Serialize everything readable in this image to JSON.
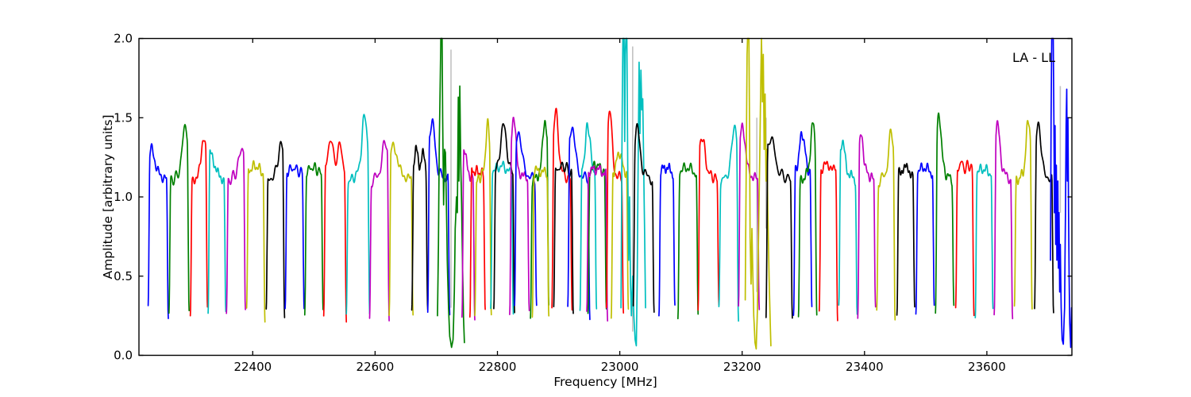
{
  "chart_data": {
    "type": "line",
    "corner_label": "LA - LL",
    "xlabel": "Frequency [MHz]",
    "ylabel": "Amplitude [arbitrary units]",
    "xlim": [
      22214,
      23739
    ],
    "ylim": [
      0,
      2.0
    ],
    "grid": false,
    "legend_position": "upper-right-inside-text-only",
    "xticks": [
      {
        "v": 22400,
        "label": "22400"
      },
      {
        "v": 22600,
        "label": "22600"
      },
      {
        "v": 22800,
        "label": "22800"
      },
      {
        "v": 23000,
        "label": "23000"
      },
      {
        "v": 23200,
        "label": "23200"
      },
      {
        "v": 23400,
        "label": "23400"
      },
      {
        "v": 23600,
        "label": "23600"
      }
    ],
    "yticks": [
      {
        "v": 0.0,
        "label": "0.0"
      },
      {
        "v": 0.5,
        "label": "0.5"
      },
      {
        "v": 1.0,
        "label": "1.0"
      },
      {
        "v": 1.5,
        "label": "1.5"
      },
      {
        "v": 2.0,
        "label": "2.0"
      }
    ],
    "colors": {
      "b": "#0000ff",
      "g": "#008000",
      "r": "#ff0000",
      "c": "#00bfbf",
      "m": "#bf00bf",
      "y": "#bfbf00",
      "k": "#000000",
      "flag": "#c2c2c2",
      "axis": "#000000",
      "background": "#ffffff"
    },
    "plateau_amplitude": 1.15,
    "edge_floor_amplitude": 0.27,
    "bands": [
      {
        "f0": 22229,
        "f1": 22262,
        "c": "b",
        "s": "peakLeft",
        "p": 1.27
      },
      {
        "f0": 22263,
        "f1": 22296,
        "c": "g",
        "s": "ramp",
        "p": 1.42
      },
      {
        "f0": 22298,
        "f1": 22326,
        "c": "r",
        "s": "ramp",
        "p": 1.35
      },
      {
        "f0": 22327,
        "f1": 22356,
        "c": "c",
        "s": "peakLeft",
        "p": 1.25
      },
      {
        "f0": 22357,
        "f1": 22388,
        "c": "m",
        "s": "ramp",
        "p": 1.27
      },
      {
        "f0": 22390,
        "f1": 22420,
        "c": "y",
        "s": "flat",
        "p": 1.24
      },
      {
        "f0": 22422,
        "f1": 22452,
        "c": "k",
        "s": "ramp",
        "p": 1.3
      },
      {
        "f0": 22453,
        "f1": 22484,
        "c": "b",
        "s": "flat",
        "p": 1.21
      },
      {
        "f0": 22485,
        "f1": 22515,
        "c": "g",
        "s": "flat",
        "p": 1.22
      },
      {
        "f0": 22516,
        "f1": 22553,
        "c": "r",
        "s": "double",
        "p": 1.37
      },
      {
        "f0": 22553,
        "f1": 22591,
        "c": "c",
        "s": "ramp",
        "p": 1.47
      },
      {
        "f0": 22591,
        "f1": 22623,
        "c": "m",
        "s": "ramp",
        "p": 1.32
      },
      {
        "f0": 22623,
        "f1": 22662,
        "c": "y",
        "s": "peakLeft",
        "p": 1.3
      },
      {
        "f0": 22660,
        "f1": 22686,
        "c": "k",
        "s": "double",
        "p": 1.3
      },
      {
        "f0": 22686,
        "f1": 22722,
        "c": "b",
        "s": "peakLeft",
        "p": 1.45
      },
      {
        "f0": 22702,
        "f1": 22746,
        "c": "g",
        "s": "anom",
        "p": 2.0,
        "cp": [
          [
            22702,
            0.25
          ],
          [
            22703.5,
            0.7
          ],
          [
            22705,
            1.35
          ],
          [
            22706.5,
            1.75
          ],
          [
            22707.5,
            2.1
          ],
          [
            22709.5,
            2.1
          ],
          [
            22710.5,
            1.5
          ],
          [
            22712,
            0.95
          ],
          [
            22713.5,
            1.3
          ],
          [
            22715,
            1.28
          ],
          [
            22716.5,
            0.95
          ],
          [
            22718,
            0.6
          ],
          [
            22720,
            0.3
          ],
          [
            22722,
            0.12
          ],
          [
            22725,
            0.05
          ],
          [
            22727.5,
            0.1
          ],
          [
            22729.5,
            0.4
          ],
          [
            22731,
            0.8
          ],
          [
            22733,
            1.0
          ],
          [
            22734.5,
            0.9
          ],
          [
            22736,
            1.63
          ],
          [
            22737,
            1.1
          ],
          [
            22738.5,
            1.7
          ],
          [
            22740,
            1.2
          ],
          [
            22741.5,
            0.95
          ],
          [
            22743,
            0.55
          ],
          [
            22744.5,
            0.25
          ],
          [
            22746,
            0.08
          ]
        ]
      },
      {
        "f0": 22742,
        "f1": 22763,
        "c": "m",
        "s": "peakLeft",
        "p": 1.28
      },
      {
        "f0": 22755,
        "f1": 22780,
        "c": "r",
        "s": "flat",
        "p": 1.17
      },
      {
        "f0": 22763,
        "f1": 22790,
        "c": "y",
        "s": "ramp",
        "p": 1.42
      },
      {
        "f0": 22789,
        "f1": 22826,
        "c": "c",
        "s": "flat",
        "p": 1.24
      },
      {
        "f0": 22794,
        "f1": 22828,
        "c": "k",
        "s": "peakMid",
        "p": 1.45
      },
      {
        "f0": 22820,
        "f1": 22852,
        "c": "m",
        "s": "peakLeft",
        "p": 1.45
      },
      {
        "f0": 22828,
        "f1": 22864,
        "c": "b",
        "s": "peakLeft",
        "p": 1.38
      },
      {
        "f0": 22854,
        "f1": 22884,
        "c": "g",
        "s": "ramp",
        "p": 1.45
      },
      {
        "f0": 22857,
        "f1": 22884,
        "c": "y",
        "s": "flat",
        "p": 1.18
      },
      {
        "f0": 22889,
        "f1": 22922,
        "c": "r",
        "s": "peakLeft",
        "p": 1.5
      },
      {
        "f0": 22892,
        "f1": 22924,
        "c": "k",
        "s": "flat",
        "p": 1.24
      },
      {
        "f0": 22915,
        "f1": 22951,
        "c": "b",
        "s": "peakLeft",
        "p": 1.42
      },
      {
        "f0": 22935,
        "f1": 22962,
        "c": "c",
        "s": "peakMid",
        "p": 1.45
      },
      {
        "f0": 22948,
        "f1": 22978,
        "c": "g",
        "s": "flat",
        "p": 1.25
      },
      {
        "f0": 22946,
        "f1": 22980,
        "c": "m",
        "s": "flat",
        "p": 1.2
      },
      {
        "f0": 22978,
        "f1": 23006,
        "c": "r",
        "s": "peakLeft",
        "p": 1.52
      },
      {
        "f0": 22986,
        "f1": 23014,
        "c": "y",
        "s": "peakMid",
        "p": 1.28
      },
      {
        "f0": 23002,
        "f1": 23042,
        "c": "c",
        "s": "anom",
        "p": 2.0,
        "cp": [
          [
            23002,
            0.3
          ],
          [
            23003.5,
            1.3
          ],
          [
            23005,
            2.1
          ],
          [
            23007,
            2.1
          ],
          [
            23008,
            1.35
          ],
          [
            23009,
            1.9
          ],
          [
            23010,
            2.1
          ],
          [
            23011.5,
            2.1
          ],
          [
            23013,
            1.2
          ],
          [
            23014.5,
            0.6
          ],
          [
            23016,
            1.0
          ],
          [
            23017.5,
            0.45
          ],
          [
            23019,
            0.25
          ],
          [
            23021,
            0.5
          ],
          [
            23023,
            0.25
          ],
          [
            23025,
            0.1
          ],
          [
            23027,
            0.06
          ],
          [
            23028.5,
            0.5
          ],
          [
            23030,
            1.2
          ],
          [
            23031.5,
            1.85
          ],
          [
            23033,
            1.4
          ],
          [
            23034.5,
            1.8
          ],
          [
            23036,
            1.55
          ],
          [
            23037.5,
            1.62
          ],
          [
            23039,
            1.2
          ],
          [
            23040.5,
            0.8
          ],
          [
            23042,
            0.3
          ]
        ]
      },
      {
        "f0": 23022,
        "f1": 23056,
        "c": "k",
        "s": "peakLeft",
        "p": 1.4
      },
      {
        "f0": 23064,
        "f1": 23090,
        "c": "b",
        "s": "flat",
        "p": 1.22
      },
      {
        "f0": 23095,
        "f1": 23128,
        "c": "g",
        "s": "flat",
        "p": 1.22
      },
      {
        "f0": 23128,
        "f1": 23162,
        "c": "r",
        "s": "peakLeft",
        "p": 1.35
      },
      {
        "f0": 23162,
        "f1": 23194,
        "c": "c",
        "s": "ramp",
        "p": 1.42
      },
      {
        "f0": 23194,
        "f1": 23228,
        "c": "m",
        "s": "peakLeft",
        "p": 1.42
      },
      {
        "f0": 23205,
        "f1": 23247,
        "c": "y",
        "s": "anom",
        "p": 2.0,
        "cp": [
          [
            23205,
            0.35
          ],
          [
            23206.5,
            1.1
          ],
          [
            23208,
            1.9
          ],
          [
            23208.8,
            2.1
          ],
          [
            23211,
            2.1
          ],
          [
            23212,
            1.45
          ],
          [
            23213,
            0.75
          ],
          [
            23214.5,
            0.45
          ],
          [
            23216,
            0.8
          ],
          [
            23217.5,
            0.5
          ],
          [
            23219,
            0.25
          ],
          [
            23221,
            0.08
          ],
          [
            23223,
            0.04
          ],
          [
            23225,
            0.3
          ],
          [
            23227,
            0.8
          ],
          [
            23229,
            1.3
          ],
          [
            23230.5,
            1.75
          ],
          [
            23231.5,
            2.1
          ],
          [
            23233,
            1.6
          ],
          [
            23234.5,
            1.9
          ],
          [
            23236,
            1.3
          ],
          [
            23237.5,
            1.65
          ],
          [
            23239,
            1.1
          ],
          [
            23240.5,
            1.3
          ],
          [
            23242,
            0.9
          ],
          [
            23244,
            0.5
          ],
          [
            23246,
            0.2
          ],
          [
            23247,
            0.06
          ]
        ]
      },
      {
        "f0": 23239,
        "f1": 23282,
        "c": "k",
        "s": "peakLeft",
        "p": 1.35
      },
      {
        "f0": 23284,
        "f1": 23314,
        "c": "b",
        "s": "peakMid",
        "p": 1.4
      },
      {
        "f0": 23292,
        "f1": 23322,
        "c": "g",
        "s": "ramp",
        "p": 1.42
      },
      {
        "f0": 23326,
        "f1": 23356,
        "c": "r",
        "s": "double",
        "p": 1.22
      },
      {
        "f0": 23358,
        "f1": 23388,
        "c": "c",
        "s": "peakLeft",
        "p": 1.32
      },
      {
        "f0": 23389,
        "f1": 23418,
        "c": "m",
        "s": "peakLeft",
        "p": 1.35
      },
      {
        "f0": 23420,
        "f1": 23450,
        "c": "y",
        "s": "ramp",
        "p": 1.38
      },
      {
        "f0": 23453,
        "f1": 23482,
        "c": "k",
        "s": "flat",
        "p": 1.21
      },
      {
        "f0": 23484,
        "f1": 23514,
        "c": "b",
        "s": "flat",
        "p": 1.22
      },
      {
        "f0": 23516,
        "f1": 23546,
        "c": "g",
        "s": "peakLeft",
        "p": 1.48
      },
      {
        "f0": 23549,
        "f1": 23579,
        "c": "r",
        "s": "double",
        "p": 1.22
      },
      {
        "f0": 23581,
        "f1": 23610,
        "c": "c",
        "s": "flat",
        "p": 1.2
      },
      {
        "f0": 23612,
        "f1": 23642,
        "c": "m",
        "s": "peakLeft",
        "p": 1.42
      },
      {
        "f0": 23645,
        "f1": 23674,
        "c": "y",
        "s": "ramp",
        "p": 1.45
      },
      {
        "f0": 23678,
        "f1": 23709,
        "c": "k",
        "s": "peakLeft",
        "p": 1.45
      },
      {
        "f0": 23704,
        "f1": 23739,
        "c": "b",
        "s": "anom",
        "p": 2.0,
        "cp": [
          [
            23704,
            0.6
          ],
          [
            23705,
            1.5
          ],
          [
            23706,
            2.1
          ],
          [
            23708.5,
            2.1
          ],
          [
            23709.5,
            1.5
          ],
          [
            23710.5,
            0.9
          ],
          [
            23711.5,
            1.45
          ],
          [
            23712.5,
            0.7
          ],
          [
            23713.5,
            1.2
          ],
          [
            23714.5,
            0.6
          ],
          [
            23716,
            1.1
          ],
          [
            23717,
            0.55
          ],
          [
            23718,
            0.9
          ],
          [
            23719,
            0.4
          ],
          [
            23720,
            0.7
          ],
          [
            23721.5,
            0.3
          ],
          [
            23723,
            0.1
          ],
          [
            23725,
            0.07
          ],
          [
            23727,
            0.3
          ],
          [
            23728.5,
            0.9
          ],
          [
            23729.5,
            1.45
          ],
          [
            23730.5,
            1.68
          ],
          [
            23731.5,
            1.1
          ],
          [
            23732.5,
            1.5
          ],
          [
            23733.5,
            0.9
          ],
          [
            23734.5,
            0.5
          ],
          [
            23735.5,
            0.2
          ],
          [
            23737,
            0.05
          ],
          [
            23738.5,
            0.3
          ]
        ]
      }
    ],
    "flagged_lines": [
      {
        "f": 22724,
        "a0": 0.3,
        "a1": 1.93
      },
      {
        "f": 23021,
        "a0": 0.15,
        "a1": 1.95
      },
      {
        "f": 23224,
        "a0": 0.4,
        "a1": 1.5
      },
      {
        "f": 23239,
        "a0": 0.8,
        "a1": 1.5
      },
      {
        "f": 23720,
        "a0": 0.9,
        "a1": 1.7
      }
    ]
  }
}
